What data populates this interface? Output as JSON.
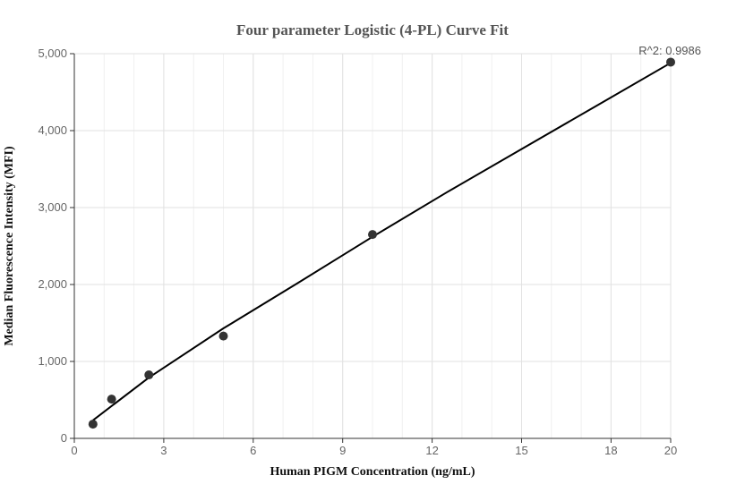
{
  "chart_data": {
    "type": "scatter",
    "title": "Four parameter Logistic (4-PL) Curve Fit",
    "xlabel": "Human PIGM Concentration (ng/mL)",
    "ylabel": "Median Fluorescence Intensity (MFI)",
    "xlim": [
      0,
      20
    ],
    "ylim": [
      0,
      5000
    ],
    "xticks": [
      0,
      3,
      6,
      9,
      12,
      15,
      18,
      20
    ],
    "xtick_labels": [
      "0",
      "3",
      "6",
      "9",
      "12",
      "15",
      "18",
      "20"
    ],
    "yticks": [
      0,
      1000,
      2000,
      3000,
      4000,
      5000
    ],
    "ytick_labels": [
      "0",
      "1,000",
      "2,000",
      "3,000",
      "4,000",
      "5,000"
    ],
    "grid": true,
    "annotation": "R^2: 0.9986",
    "series": [
      {
        "type": "scatter",
        "x": [
          0.625,
          1.25,
          2.5,
          5,
          10,
          20
        ],
        "y": [
          185,
          510,
          825,
          1330,
          2650,
          4890
        ],
        "color": "#333333"
      },
      {
        "type": "line",
        "x": [
          0.625,
          2.5,
          5,
          7.5,
          10,
          12.5,
          15,
          17.5,
          20
        ],
        "y": [
          235,
          790,
          1430,
          2020,
          2620,
          3200,
          3760,
          4320,
          4880
        ],
        "color": "#000000"
      }
    ]
  }
}
